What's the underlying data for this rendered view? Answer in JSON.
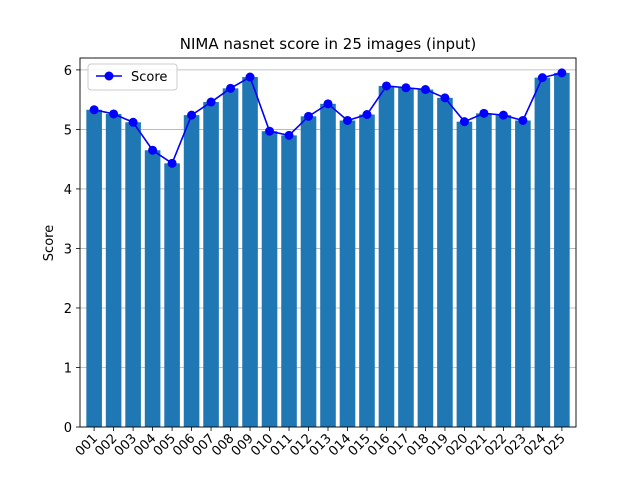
{
  "chart_data": {
    "type": "bar",
    "title": "NIMA nasnet score in 25 images (input)",
    "xlabel": "",
    "ylabel": "Score",
    "ylim": [
      0,
      6.2
    ],
    "yticks": [
      0,
      1,
      2,
      3,
      4,
      5,
      6
    ],
    "grid": "y",
    "legend_position": "top-left",
    "categories": [
      "001",
      "002",
      "003",
      "004",
      "005",
      "006",
      "007",
      "008",
      "009",
      "010",
      "011",
      "012",
      "013",
      "014",
      "015",
      "016",
      "017",
      "018",
      "019",
      "020",
      "021",
      "022",
      "023",
      "024",
      "025"
    ],
    "series": [
      {
        "name": "Score",
        "style": "bar+line-marker",
        "bar_color": "#1f77b4",
        "line_color": "#0000ff",
        "values": [
          5.33,
          5.26,
          5.12,
          4.65,
          4.43,
          5.24,
          5.46,
          5.69,
          5.88,
          4.97,
          4.9,
          5.22,
          5.43,
          5.15,
          5.25,
          5.73,
          5.7,
          5.67,
          5.53,
          5.13,
          5.27,
          5.24,
          5.15,
          5.87,
          5.95
        ]
      }
    ]
  }
}
